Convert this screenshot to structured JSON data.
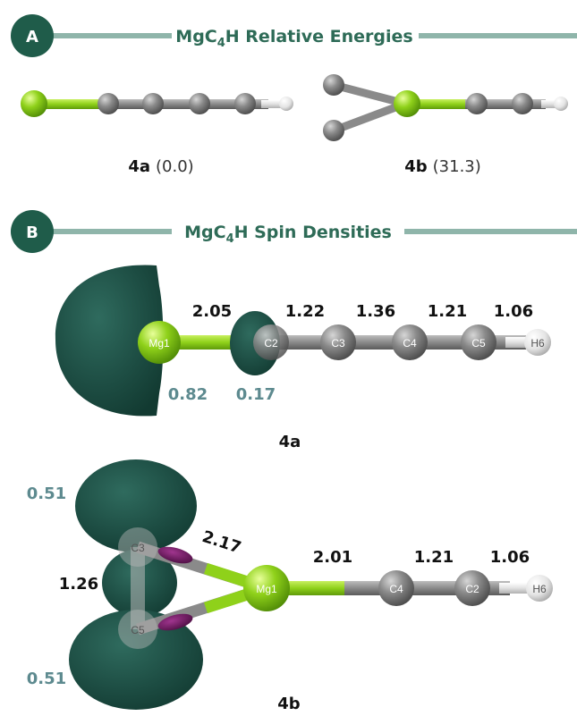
{
  "panel_a": {
    "letter": "A",
    "title_prefix": "MgC",
    "title_sub": "4",
    "title_suffix": "H Relative Energies",
    "isomers": [
      {
        "name": "4a",
        "energy": "(0.0)"
      },
      {
        "name": "4b",
        "energy": "(31.3)"
      }
    ]
  },
  "panel_b": {
    "letter": "B",
    "title_prefix": "MgC",
    "title_sub": "4",
    "title_suffix": "H Spin Densities",
    "mol_4a": {
      "label": "4a",
      "bond_lengths": [
        "2.05",
        "1.22",
        "1.36",
        "1.21",
        "1.06"
      ],
      "spin_densities": [
        "0.82",
        "0.17"
      ],
      "atoms": [
        "Mg1",
        "C2",
        "C3",
        "C4",
        "C5",
        "H6"
      ]
    },
    "mol_4b": {
      "label": "4b",
      "bond_lengths": [
        "2.17",
        "2.01",
        "1.21",
        "1.06",
        "1.26"
      ],
      "spin_densities": [
        "0.51",
        "0.51"
      ],
      "atoms": [
        "C3",
        "C5",
        "Mg1",
        "C4",
        "C2",
        "H6"
      ]
    }
  },
  "colors": {
    "header_line": "#8fb5aa",
    "header_circle": "#1f5c4a",
    "spin_lobe": "#1d4d43",
    "magnesium": "#8fd11a",
    "carbon": "#7a7a7a",
    "hydrogen": "#e4e4e4",
    "negative_spin": "#6a1a5c"
  }
}
